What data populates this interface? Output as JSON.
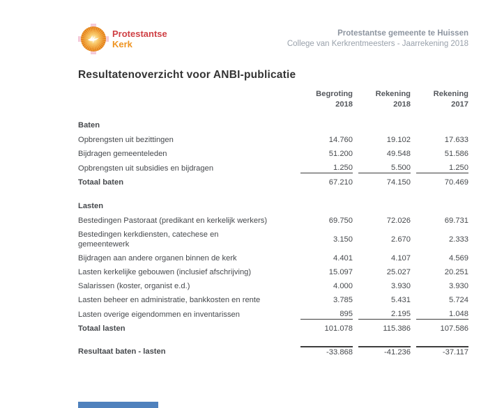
{
  "logo": {
    "name1": "Protestantse",
    "name2": "Kerk"
  },
  "header": {
    "organization": "Protestantse gemeente te Huissen",
    "subtitle": "College van Kerkrentmeesters - Jaarrekening 2018"
  },
  "title": "Resultatenoverzicht voor ANBI-publicatie",
  "columns": [
    {
      "line1": "Begroting",
      "line2": "2018"
    },
    {
      "line1": "Rekening",
      "line2": "2018"
    },
    {
      "line1": "Rekening",
      "line2": "2017"
    }
  ],
  "sections": [
    {
      "heading": "Baten",
      "rows": [
        {
          "label": "Opbrengsten uit bezittingen",
          "values": [
            "14.760",
            "19.102",
            "17.633"
          ]
        },
        {
          "label": "Bijdragen gemeenteleden",
          "values": [
            "51.200",
            "49.548",
            "51.586"
          ]
        },
        {
          "label": "Opbrengsten uit subsidies en bijdragen",
          "values": [
            "1.250",
            "5.500",
            "1.250"
          ],
          "underline": true
        }
      ],
      "total": {
        "label": "Totaal baten",
        "values": [
          "67.210",
          "74.150",
          "70.469"
        ]
      }
    },
    {
      "heading": "Lasten",
      "rows": [
        {
          "label": "Bestedingen Pastoraat (predikant en kerkelijk werkers)",
          "values": [
            "69.750",
            "72.026",
            "69.731"
          ]
        },
        {
          "label": "Bestedingen kerkdiensten, catechese en",
          "label2": "gemeentewerk",
          "values": [
            "3.150",
            "2.670",
            "2.333"
          ]
        },
        {
          "label": "Bijdragen aan andere organen binnen de kerk",
          "values": [
            "4.401",
            "4.107",
            "4.569"
          ]
        },
        {
          "label": "Lasten kerkelijke gebouwen (inclusief afschrijving)",
          "values": [
            "15.097",
            "25.027",
            "20.251"
          ]
        },
        {
          "label": "Salarissen (koster, organist e.d.)",
          "values": [
            "4.000",
            "3.930",
            "3.930"
          ]
        },
        {
          "label": "Lasten beheer en administratie, bankkosten en rente",
          "values": [
            "3.785",
            "5.431",
            "5.724"
          ]
        },
        {
          "label": "Lasten overige eigendommen en inventarissen",
          "values": [
            "895",
            "2.195",
            "1.048"
          ],
          "underline": true
        }
      ],
      "total": {
        "label": "Totaal lasten",
        "values": [
          "101.078",
          "115.386",
          "107.586"
        ]
      }
    }
  ],
  "result": {
    "label": "Resultaat baten - lasten",
    "values": [
      "-33.868",
      "-41.236",
      "-37.117"
    ]
  },
  "colors": {
    "logo_red": "#cf4045",
    "logo_orange": "#ee9422",
    "header_gray": "#8d95a0",
    "body_text": "#46494d",
    "rule_line": "#3c3c3c",
    "footer_bar_blue": "#4f81bd"
  }
}
